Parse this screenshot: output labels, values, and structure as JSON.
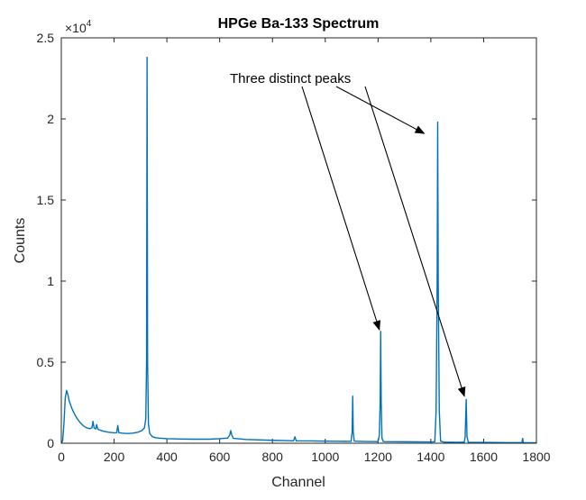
{
  "chart_data": {
    "type": "line",
    "title": "HPGe Ba-133 Spectrum",
    "xlabel": "Channel",
    "ylabel": "Counts",
    "xlim": [
      0,
      1800
    ],
    "ylim": [
      0,
      25000
    ],
    "y_exponent_label": "×10",
    "y_exponent_power": "4",
    "x_ticks": [
      0,
      200,
      400,
      600,
      800,
      1000,
      1200,
      1400,
      1600,
      1800
    ],
    "x_tick_labels": [
      "0",
      "200",
      "400",
      "600",
      "800",
      "1000",
      "1200",
      "1400",
      "1600",
      "1800"
    ],
    "y_ticks": [
      0,
      5000,
      10000,
      15000,
      20000,
      25000
    ],
    "y_tick_labels": [
      "0",
      "0.5",
      "1",
      "1.5",
      "2",
      "2.5"
    ],
    "grid": false,
    "line_color": "#0072BD",
    "annotation": {
      "text": "Three distinct peaks",
      "targets": [
        {
          "x": 1205,
          "y": 7000
        },
        {
          "x": 1375,
          "y": 19100
        },
        {
          "x": 1527,
          "y": 2900
        }
      ]
    },
    "series": [
      {
        "values": [
          [
            0,
            0
          ],
          [
            5,
            150
          ],
          [
            10,
            1200
          ],
          [
            15,
            2800
          ],
          [
            20,
            3250
          ],
          [
            25,
            3000
          ],
          [
            30,
            2600
          ],
          [
            40,
            2150
          ],
          [
            50,
            1800
          ],
          [
            60,
            1520
          ],
          [
            70,
            1300
          ],
          [
            80,
            1130
          ],
          [
            90,
            1000
          ],
          [
            100,
            930
          ],
          [
            110,
            900
          ],
          [
            116,
            950
          ],
          [
            120,
            1350
          ],
          [
            124,
            950
          ],
          [
            130,
            880
          ],
          [
            134,
            1150
          ],
          [
            138,
            880
          ],
          [
            145,
            820
          ],
          [
            160,
            740
          ],
          [
            180,
            680
          ],
          [
            200,
            640
          ],
          [
            210,
            650
          ],
          [
            214,
            1100
          ],
          [
            218,
            650
          ],
          [
            230,
            620
          ],
          [
            250,
            600
          ],
          [
            270,
            620
          ],
          [
            290,
            680
          ],
          [
            305,
            780
          ],
          [
            315,
            950
          ],
          [
            320,
            1500
          ],
          [
            323,
            5000
          ],
          [
            325,
            23800
          ],
          [
            327,
            5000
          ],
          [
            330,
            1200
          ],
          [
            335,
            600
          ],
          [
            345,
            400
          ],
          [
            360,
            330
          ],
          [
            400,
            280
          ],
          [
            450,
            260
          ],
          [
            500,
            250
          ],
          [
            560,
            250
          ],
          [
            600,
            280
          ],
          [
            630,
            320
          ],
          [
            638,
            500
          ],
          [
            642,
            780
          ],
          [
            646,
            500
          ],
          [
            652,
            300
          ],
          [
            700,
            230
          ],
          [
            800,
            180
          ],
          [
            880,
            150
          ],
          [
            885,
            400
          ],
          [
            890,
            150
          ],
          [
            950,
            140
          ],
          [
            1000,
            130
          ],
          [
            1050,
            120
          ],
          [
            1098,
            115
          ],
          [
            1102,
            700
          ],
          [
            1104,
            2900
          ],
          [
            1106,
            700
          ],
          [
            1110,
            130
          ],
          [
            1150,
            110
          ],
          [
            1200,
            100
          ],
          [
            1205,
            500
          ],
          [
            1208,
            2500
          ],
          [
            1210,
            6900
          ],
          [
            1212,
            2500
          ],
          [
            1215,
            300
          ],
          [
            1220,
            100
          ],
          [
            1300,
            90
          ],
          [
            1400,
            80
          ],
          [
            1415,
            90
          ],
          [
            1420,
            2000
          ],
          [
            1424,
            10000
          ],
          [
            1426,
            19800
          ],
          [
            1428,
            10000
          ],
          [
            1432,
            2000
          ],
          [
            1437,
            120
          ],
          [
            1450,
            70
          ],
          [
            1500,
            60
          ],
          [
            1527,
            70
          ],
          [
            1530,
            400
          ],
          [
            1534,
            2700
          ],
          [
            1537,
            400
          ],
          [
            1542,
            60
          ],
          [
            1600,
            50
          ],
          [
            1700,
            40
          ],
          [
            1745,
            40
          ],
          [
            1748,
            300
          ],
          [
            1750,
            40
          ],
          [
            1800,
            30
          ]
        ]
      }
    ]
  }
}
